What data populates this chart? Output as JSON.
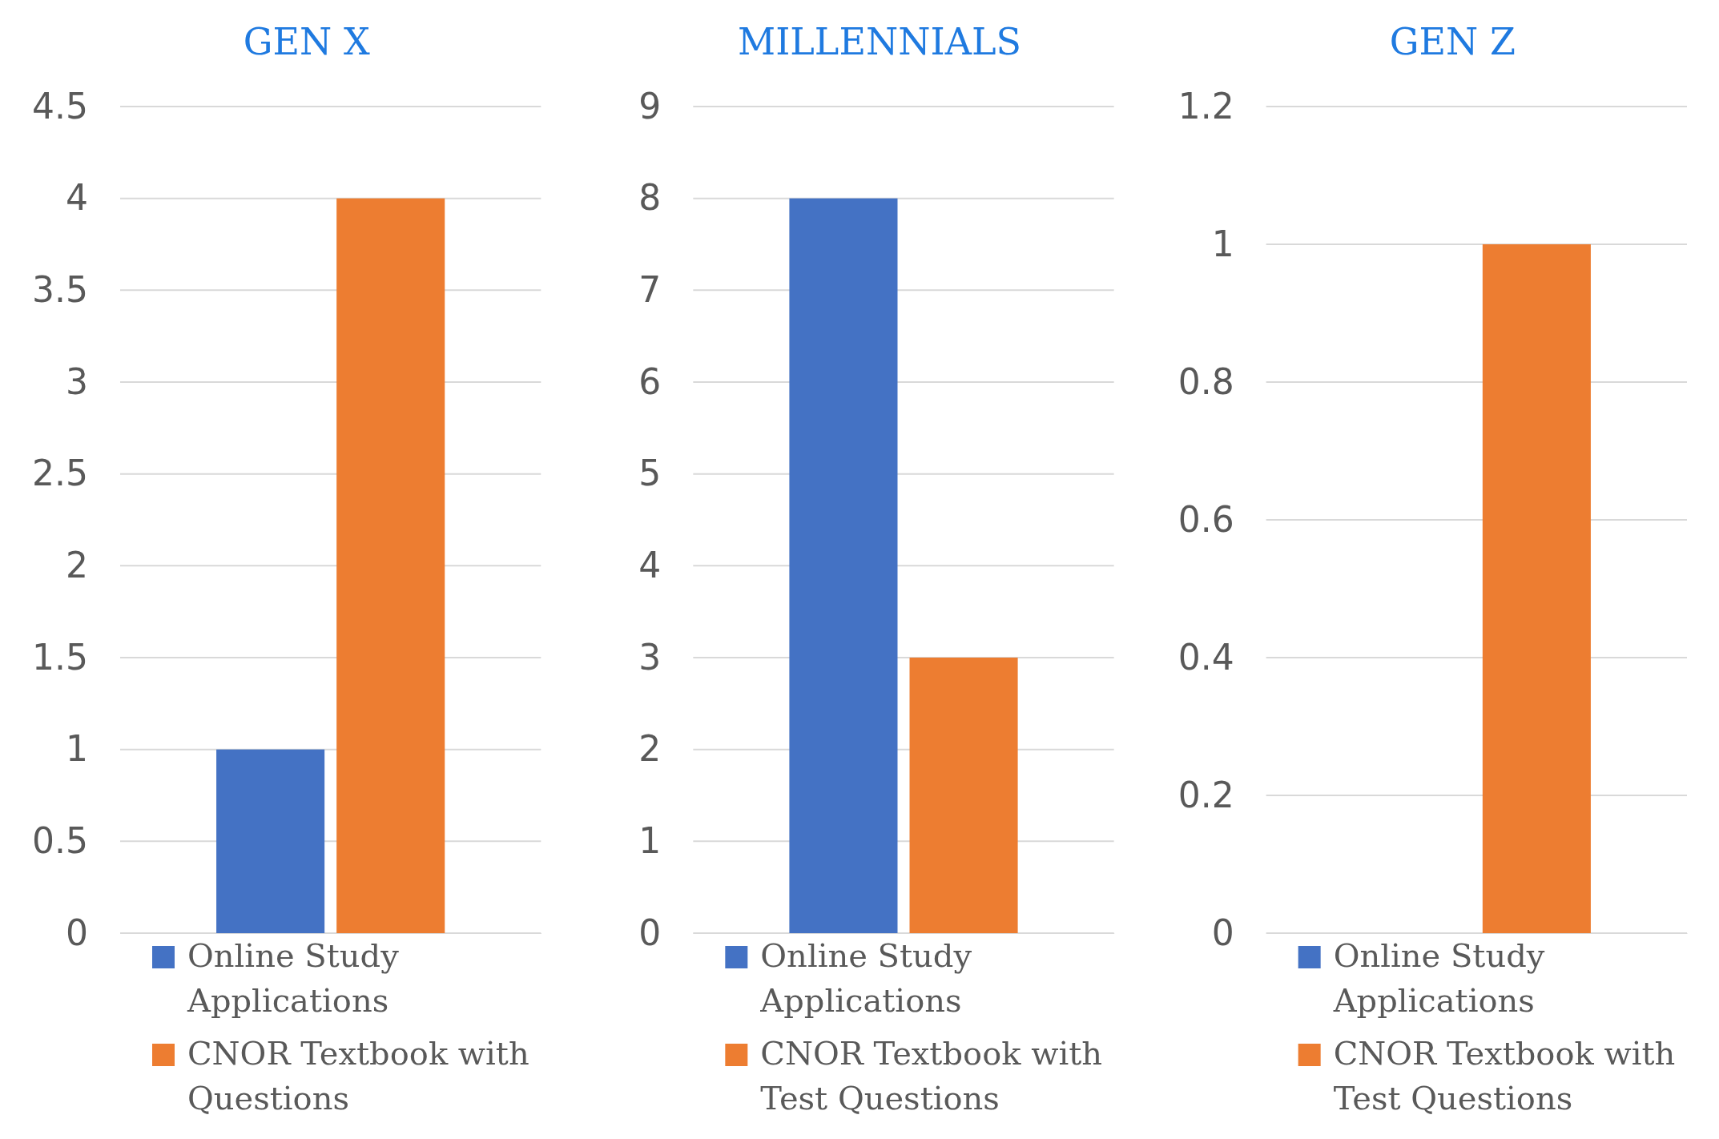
{
  "chart_data": [
    {
      "type": "bar",
      "title": "GEN X",
      "categories": [
        null
      ],
      "series": [
        {
          "name": "Online Study Applications",
          "color": "#4472c4",
          "values": [
            1
          ]
        },
        {
          "name": "CNOR Textbook with Questions",
          "color": "#ed7d31",
          "values": [
            4
          ]
        }
      ],
      "ylim": [
        0,
        4.5
      ],
      "yticks": [
        0,
        0.5,
        1,
        1.5,
        2,
        2.5,
        3,
        3.5,
        4,
        4.5
      ],
      "grid": "y",
      "legend": "bottom"
    },
    {
      "type": "bar",
      "title": "MILLENNIALS",
      "categories": [
        null
      ],
      "series": [
        {
          "name": "Online Study Applications",
          "color": "#4472c4",
          "values": [
            8
          ]
        },
        {
          "name": "CNOR Textbook with Test Questions",
          "color": "#ed7d31",
          "values": [
            3
          ]
        }
      ],
      "ylim": [
        0,
        9
      ],
      "yticks": [
        0,
        1,
        2,
        3,
        4,
        5,
        6,
        7,
        8,
        9
      ],
      "grid": "y",
      "legend": "bottom"
    },
    {
      "type": "bar",
      "title": "GEN Z",
      "categories": [
        null
      ],
      "series": [
        {
          "name": "Online Study Applications",
          "color": "#4472c4",
          "values": [
            0
          ]
        },
        {
          "name": "CNOR Textbook with Test Questions",
          "color": "#ed7d31",
          "values": [
            1
          ]
        }
      ],
      "ylim": [
        0,
        1.2
      ],
      "yticks": [
        0,
        0.2,
        0.4,
        0.6,
        0.8,
        1,
        1.2
      ],
      "grid": "y",
      "legend": "bottom"
    }
  ]
}
